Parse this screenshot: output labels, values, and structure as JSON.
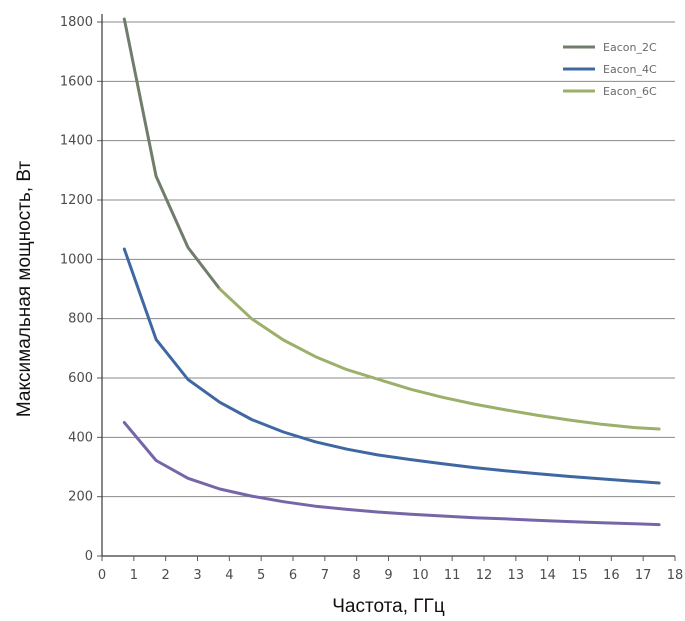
{
  "chart_data": {
    "type": "line",
    "title": "",
    "xlabel": "Частота, ГГц",
    "ylabel": "Максимальная мощность, Вт",
    "xlim": [
      0,
      18
    ],
    "ylim": [
      0,
      1800
    ],
    "xticks": [
      "0",
      "1",
      "2",
      "3",
      "4",
      "5",
      "6",
      "7",
      "8",
      "9",
      "10",
      "11",
      "12",
      "13",
      "14",
      "15",
      "16",
      "17",
      "18"
    ],
    "yticks": [
      "0",
      "200",
      "400",
      "600",
      "800",
      "1000",
      "1200",
      "1400",
      "1600",
      "1800"
    ],
    "grid": "horizontal",
    "legend_position": "top-right",
    "series": [
      {
        "name": "Eacon_2C",
        "color": "#6f7d6a",
        "points": [
          [
            0.7,
            1810
          ],
          [
            1.7,
            1280
          ],
          [
            2.7,
            1040
          ],
          [
            3.7,
            900
          ]
        ]
      },
      {
        "name": "Eacon_4C",
        "color": "#3f68a3",
        "points": [
          [
            0.7,
            1035
          ],
          [
            1.7,
            730
          ],
          [
            2.7,
            595
          ],
          [
            3.7,
            518
          ],
          [
            4.7,
            460
          ],
          [
            5.7,
            418
          ],
          [
            6.7,
            385
          ],
          [
            7.7,
            360
          ],
          [
            8.7,
            340
          ],
          [
            9.7,
            325
          ],
          [
            10.7,
            311
          ],
          [
            11.7,
            298
          ],
          [
            12.7,
            287
          ],
          [
            13.7,
            277
          ],
          [
            14.7,
            268
          ],
          [
            15.7,
            260
          ],
          [
            16.7,
            252
          ],
          [
            17.5,
            246
          ]
        ]
      },
      {
        "name": "Eacon_6C",
        "color": "#9ab06b",
        "points": [
          [
            3.7,
            900
          ],
          [
            4.7,
            800
          ],
          [
            5.7,
            728
          ],
          [
            6.7,
            672
          ],
          [
            7.7,
            628
          ],
          [
            8.7,
            595
          ],
          [
            9.7,
            562
          ],
          [
            10.7,
            535
          ],
          [
            11.7,
            512
          ],
          [
            12.7,
            492
          ],
          [
            13.7,
            474
          ],
          [
            14.7,
            458
          ],
          [
            15.7,
            444
          ],
          [
            16.7,
            433
          ],
          [
            17.5,
            428
          ]
        ]
      },
      {
        "name": "",
        "color": "#7666a8",
        "points": [
          [
            0.7,
            450
          ],
          [
            1.7,
            322
          ],
          [
            2.7,
            262
          ],
          [
            3.7,
            226
          ],
          [
            4.7,
            202
          ],
          [
            5.7,
            183
          ],
          [
            6.7,
            168
          ],
          [
            7.7,
            157
          ],
          [
            8.7,
            148
          ],
          [
            9.7,
            141
          ],
          [
            10.7,
            135
          ],
          [
            11.7,
            129
          ],
          [
            12.7,
            125
          ],
          [
            13.7,
            120
          ],
          [
            14.7,
            116
          ],
          [
            15.7,
            112
          ],
          [
            16.7,
            109
          ],
          [
            17.5,
            106
          ]
        ]
      }
    ]
  }
}
